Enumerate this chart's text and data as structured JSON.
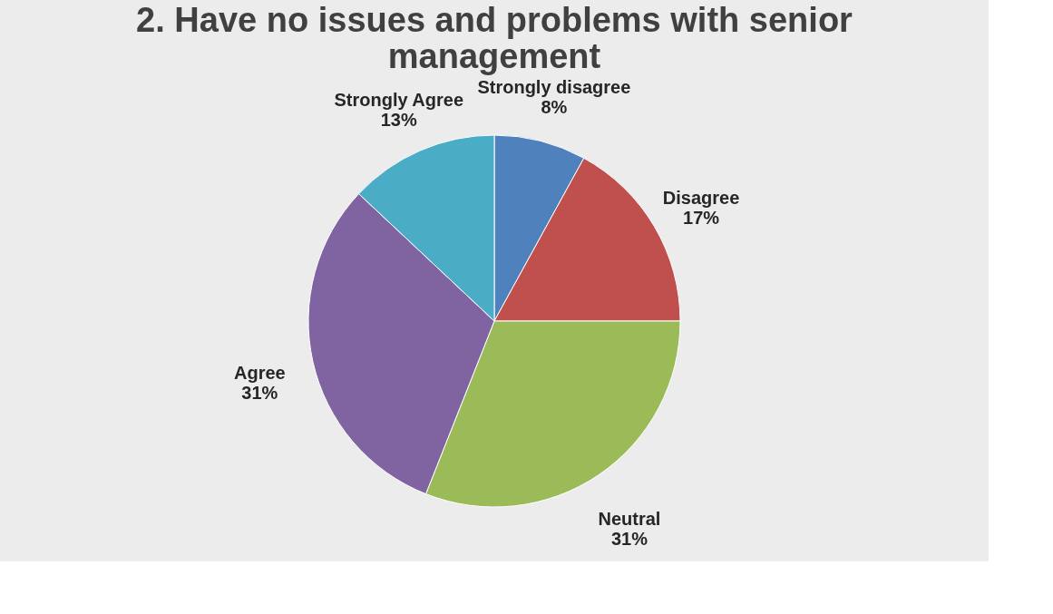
{
  "chart_data": {
    "type": "pie",
    "title": "2. Have no issues and problems with senior management",
    "categories": [
      "Strongly disagree",
      "Disagree",
      "Neutral",
      "Agree",
      "Strongly Agree"
    ],
    "values": [
      8,
      17,
      31,
      31,
      13
    ],
    "colors": [
      "#4f81bd",
      "#c0504d",
      "#9bbb59",
      "#8064a2",
      "#4bacc6"
    ],
    "value_labels": [
      "8%",
      "17%",
      "31%",
      "31%",
      "13%"
    ],
    "legend": false
  }
}
